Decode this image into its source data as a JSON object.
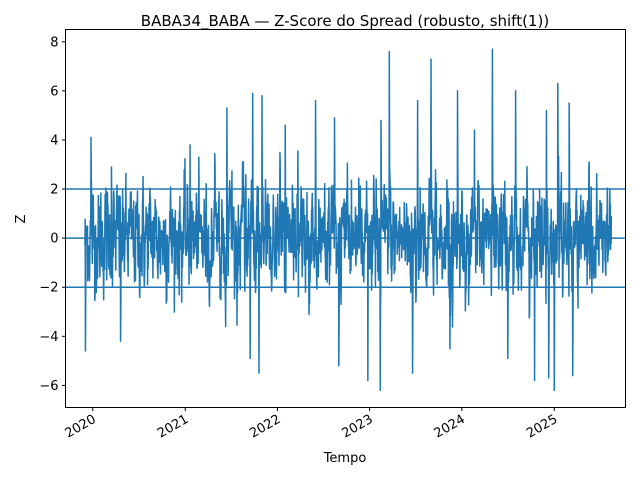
{
  "chart_data": {
    "type": "line",
    "title": "BABA34_BABA — Z-Score do Spread (robusto, shift(1))",
    "xlabel": "Tempo",
    "ylabel": "Z",
    "xlim": [
      "2019-09-15",
      "2025-10-10"
    ],
    "ylim": [
      -6.9,
      8.5
    ],
    "x_ticks": [
      "2020",
      "2021",
      "2022",
      "2023",
      "2024",
      "2025"
    ],
    "y_ticks": [
      -6,
      -4,
      -2,
      0,
      2,
      4,
      6,
      8
    ],
    "grid": false,
    "series": [
      {
        "x_start": "2019-12-01",
        "x_end": "2025-08-15",
        "frequency": "daily",
        "color": "#1f77b4",
        "typical_range": [
          -2.5,
          2.5
        ],
        "max": 7.7,
        "min": -6.2,
        "peaks": [
          {
            "x": "2019-12-25",
            "y": 4.1
          },
          {
            "x": "2020-03-15",
            "y": 2.9
          },
          {
            "x": "2021-01-20",
            "y": 3.8
          },
          {
            "x": "2021-06-15",
            "y": 5.3
          },
          {
            "x": "2021-09-25",
            "y": 5.9
          },
          {
            "x": "2021-11-01",
            "y": 5.8
          },
          {
            "x": "2022-02-01",
            "y": 4.6
          },
          {
            "x": "2022-06-01",
            "y": 5.6
          },
          {
            "x": "2022-08-15",
            "y": 4.9
          },
          {
            "x": "2023-02-15",
            "y": 4.8
          },
          {
            "x": "2023-03-20",
            "y": 7.6
          },
          {
            "x": "2023-07-10",
            "y": 5.6
          },
          {
            "x": "2023-09-01",
            "y": 7.3
          },
          {
            "x": "2023-12-15",
            "y": 6.0
          },
          {
            "x": "2024-02-20",
            "y": 4.4
          },
          {
            "x": "2024-05-01",
            "y": 7.7
          },
          {
            "x": "2024-08-01",
            "y": 6.0
          },
          {
            "x": "2024-12-01",
            "y": 5.2
          },
          {
            "x": "2025-01-15",
            "y": 6.3
          },
          {
            "x": "2025-03-01",
            "y": 5.5
          }
        ],
        "troughs": [
          {
            "x": "2019-12-03",
            "y": -4.6
          },
          {
            "x": "2020-04-20",
            "y": -4.2
          },
          {
            "x": "2021-06-10",
            "y": -3.6
          },
          {
            "x": "2021-09-15",
            "y": -4.9
          },
          {
            "x": "2021-10-20",
            "y": -5.5
          },
          {
            "x": "2022-09-01",
            "y": -5.2
          },
          {
            "x": "2022-12-25",
            "y": -5.8
          },
          {
            "x": "2023-02-12",
            "y": -6.2
          },
          {
            "x": "2023-06-20",
            "y": -5.5
          },
          {
            "x": "2023-11-15",
            "y": -4.5
          },
          {
            "x": "2024-07-01",
            "y": -4.9
          },
          {
            "x": "2024-10-15",
            "y": -5.8
          },
          {
            "x": "2024-12-10",
            "y": -5.7
          },
          {
            "x": "2025-01-01",
            "y": -6.2
          },
          {
            "x": "2025-03-15",
            "y": -5.6
          }
        ]
      }
    ],
    "hlines": [
      2,
      0,
      -2
    ]
  }
}
